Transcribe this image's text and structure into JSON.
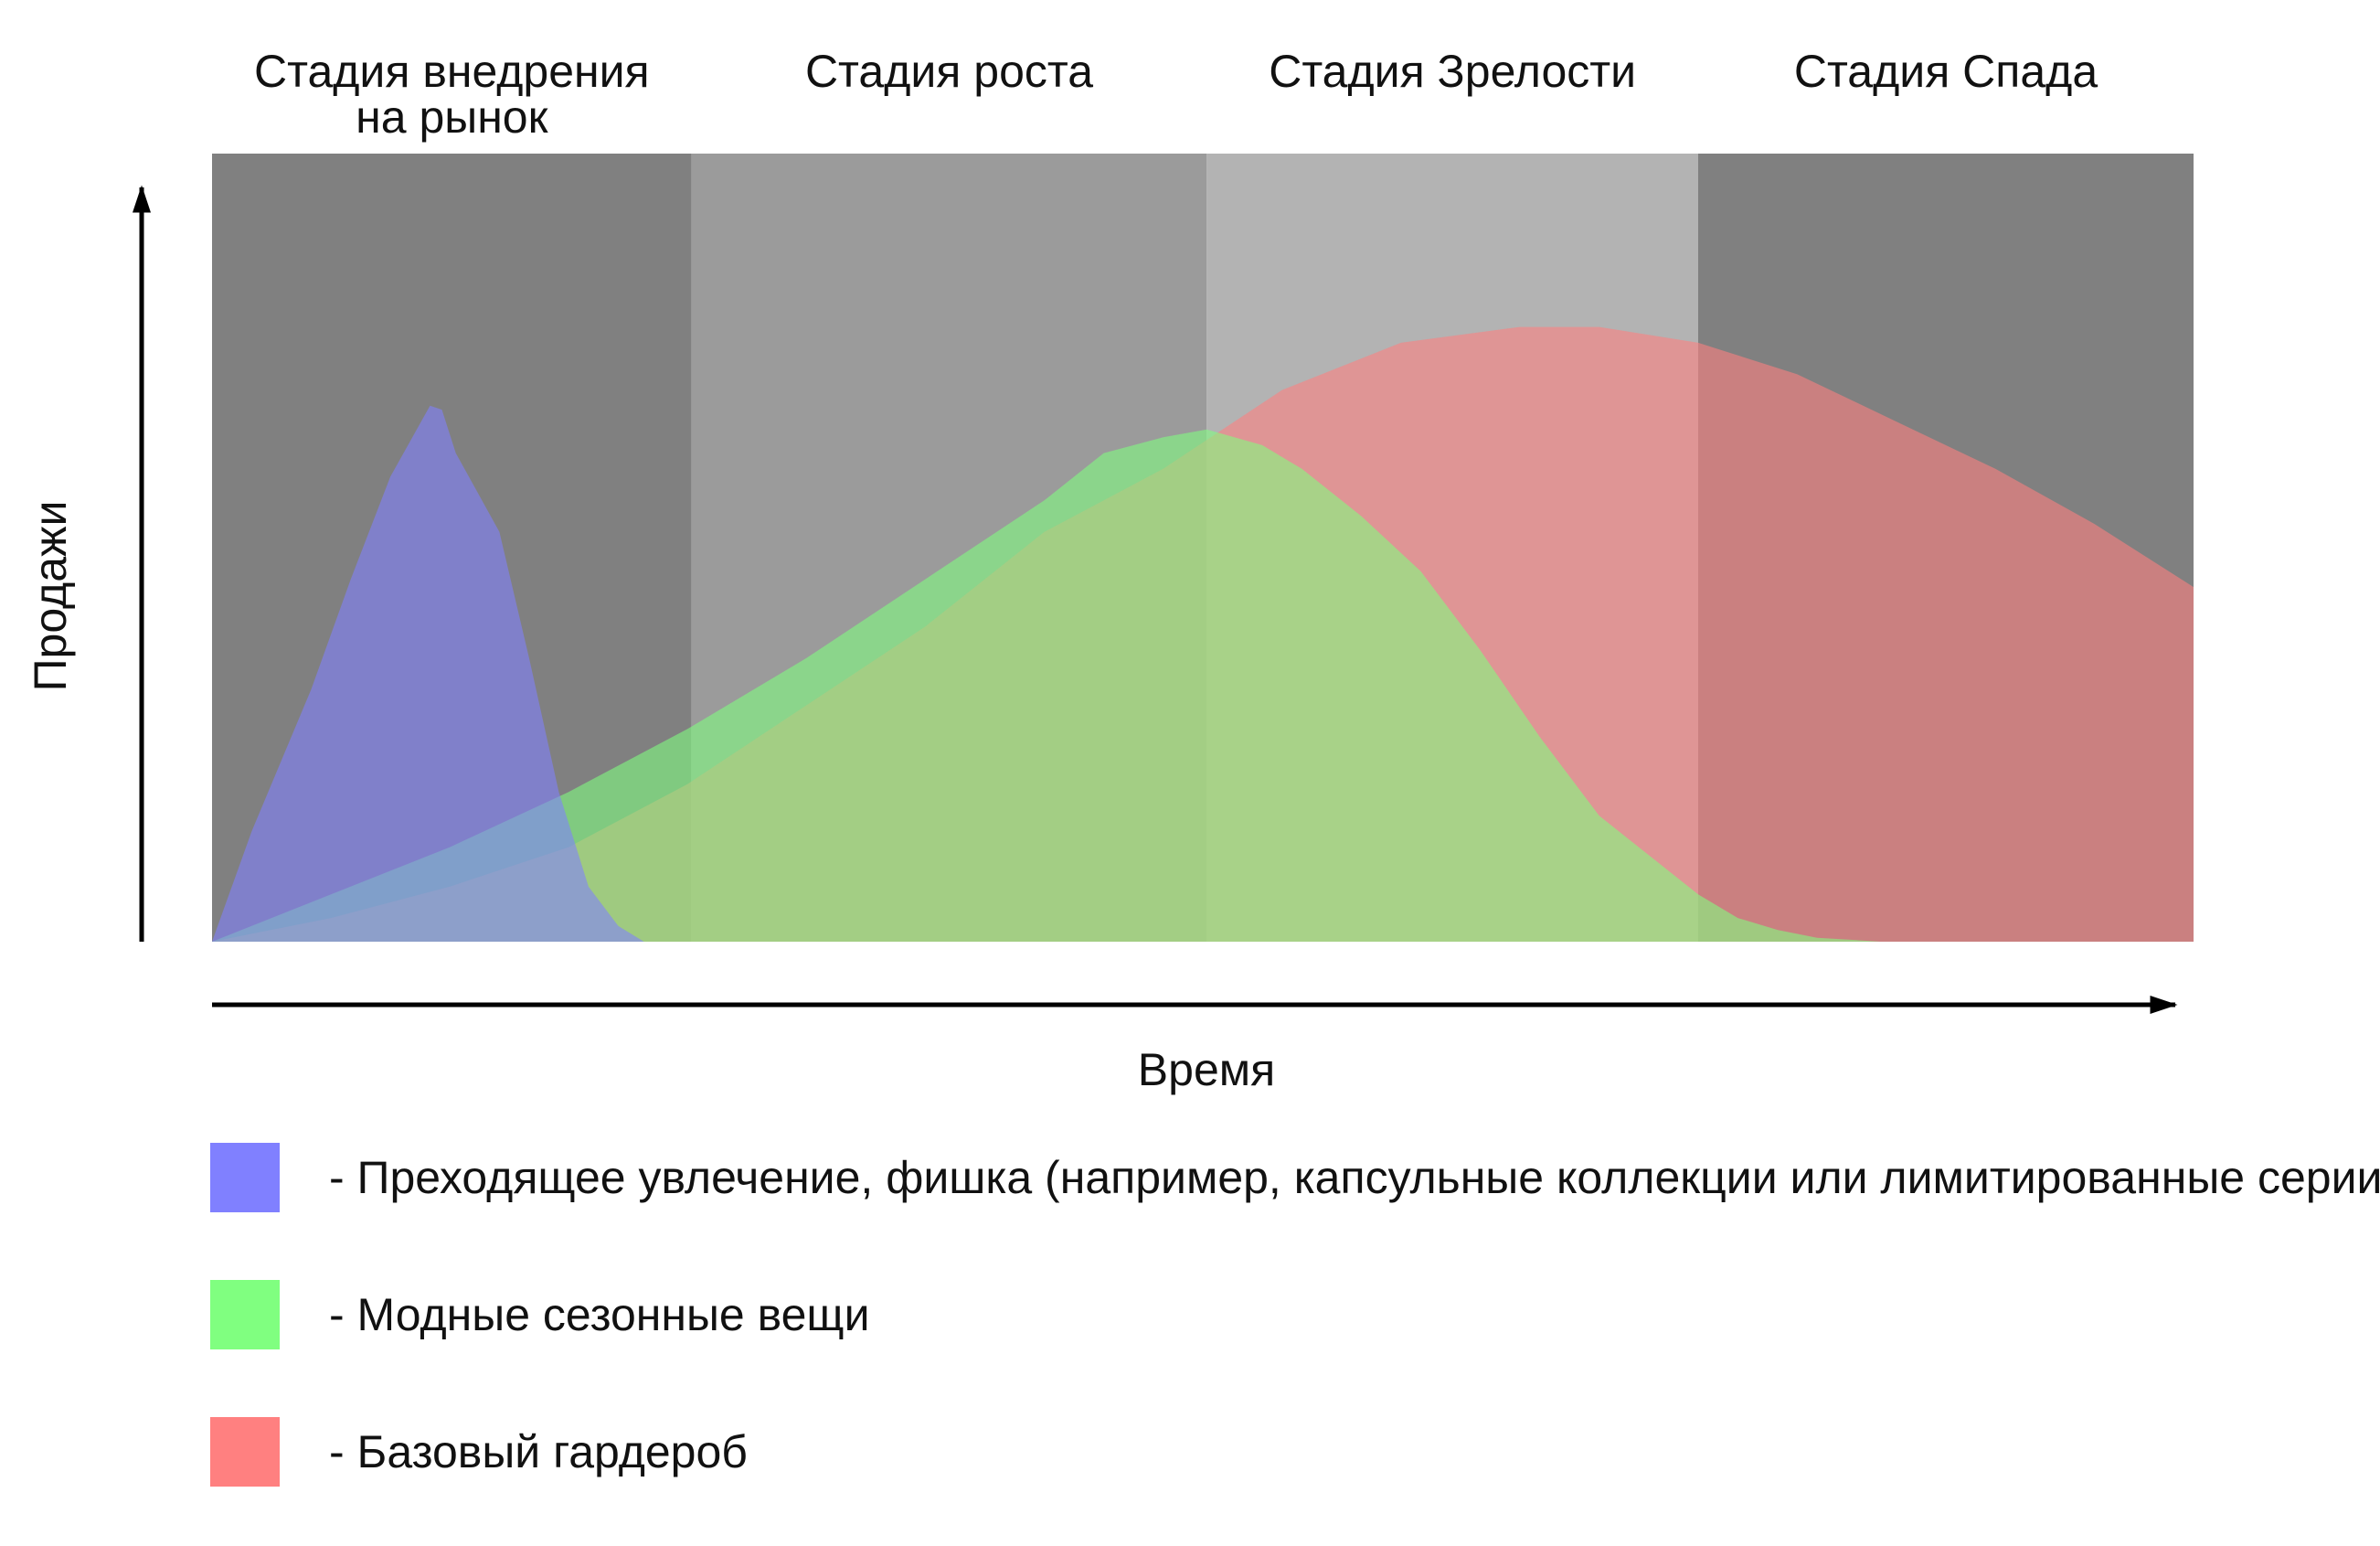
{
  "chart_data": {
    "type": "area",
    "title": "",
    "xlabel": "Время",
    "ylabel": "Продажи",
    "xlim": [
      0,
      100
    ],
    "ylim": [
      0,
      100
    ],
    "grid": false,
    "legend_placement": "bottom",
    "stages": [
      {
        "name": "Стадия внедрения на рынок",
        "lines": [
          "Стадия внедрения",
          "на рынок"
        ],
        "x_start": 0,
        "x_end": 24.2,
        "color": "#808080"
      },
      {
        "name": "Стадия роста",
        "lines": [
          "Стадия роста"
        ],
        "x_start": 24.2,
        "x_end": 50.2,
        "color": "#9b9b9b"
      },
      {
        "name": "Стадия Зрелости",
        "lines": [
          "Стадия Зрелости"
        ],
        "x_start": 50.2,
        "x_end": 75.0,
        "color": "#b3b3b3"
      },
      {
        "name": "Стадия Спада",
        "lines": [
          "Стадия Спада"
        ],
        "x_start": 75.0,
        "x_end": 100,
        "color": "#808080"
      }
    ],
    "series": [
      {
        "name": "Преходящее увлечение, фишка (например, капсульные коллекции или лимитированные серии)",
        "legend_label": "- Преходящее увлечение, фишка (например, капсульные коллекции или лимитированные серии)",
        "color": "#8080ff",
        "x": [
          0,
          2,
          5,
          7,
          9,
          11,
          11.6,
          12.3,
          14.5,
          16,
          17.5,
          19,
          20.5,
          21.8
        ],
        "y": [
          0,
          14,
          32,
          46,
          59,
          68,
          67.5,
          62,
          52,
          36,
          19,
          7,
          2,
          0
        ]
      },
      {
        "name": "Модные сезонные вещи",
        "legend_label": "- Модные сезонные вещи",
        "color": "#80ff80",
        "x": [
          0,
          6,
          12,
          18,
          24,
          30,
          36,
          42,
          45,
          48,
          50.2,
          53,
          55,
          58,
          61,
          64,
          67,
          70,
          73,
          75,
          77,
          79,
          81,
          83,
          84.2
        ],
        "y": [
          0,
          6,
          12,
          19,
          27,
          36,
          46,
          56,
          62,
          64,
          65,
          63,
          60,
          54,
          47,
          37,
          26,
          16,
          10,
          6,
          3,
          1.5,
          0.5,
          0.2,
          0
        ]
      },
      {
        "name": "Базовый гардероб",
        "legend_label": "- Базовый гардероб",
        "color": "#ff8080",
        "x": [
          0,
          6,
          12,
          18,
          24,
          30,
          36,
          42,
          48,
          54,
          60,
          66,
          70,
          75,
          80,
          85,
          90,
          95,
          100
        ],
        "y": [
          0,
          3,
          7,
          12,
          20,
          30,
          40,
          52,
          60,
          70,
          76,
          78,
          78,
          76,
          72,
          66,
          60,
          53,
          45
        ]
      }
    ]
  }
}
